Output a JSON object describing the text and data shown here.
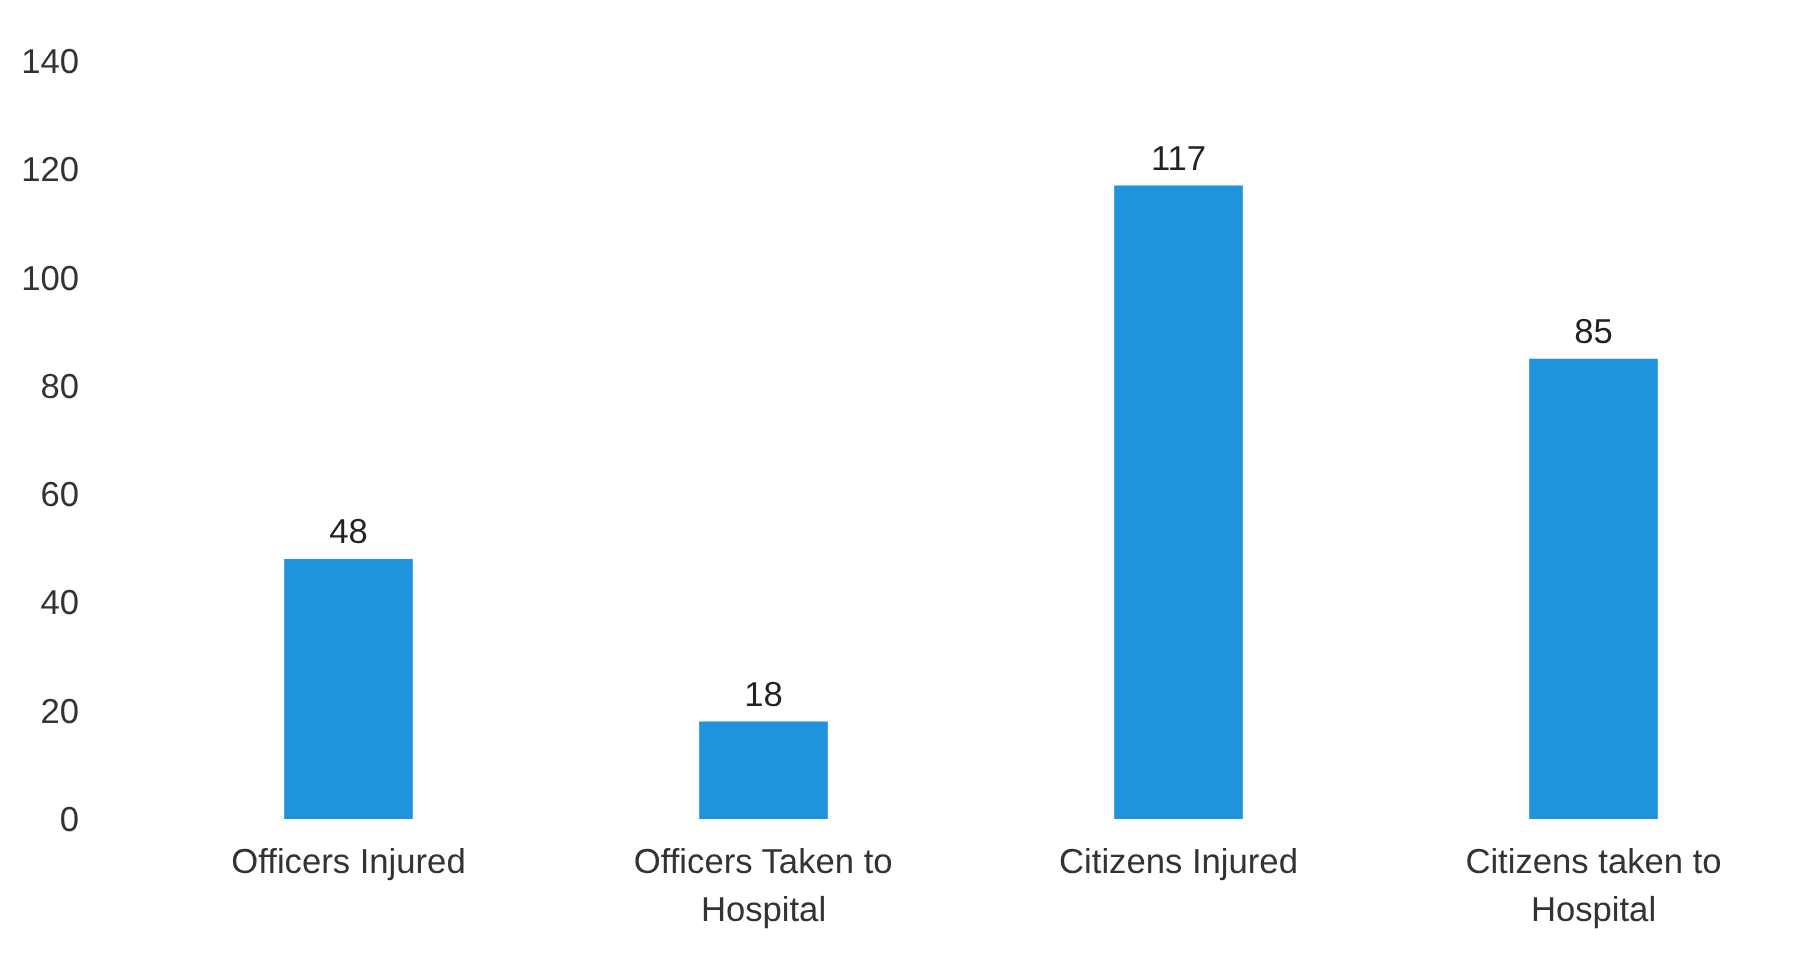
{
  "chart_data": {
    "type": "bar",
    "categories": [
      "Officers Injured",
      "Officers Taken to Hospital",
      "Citizens Injured",
      "Citizens taken to Hospital"
    ],
    "values": [
      48,
      18,
      117,
      85
    ],
    "color": "#1f93dc",
    "ylim": [
      0,
      140
    ],
    "yticks": [
      0,
      20,
      40,
      60,
      80,
      100,
      120,
      140
    ],
    "grid": false,
    "data_labels": true
  }
}
